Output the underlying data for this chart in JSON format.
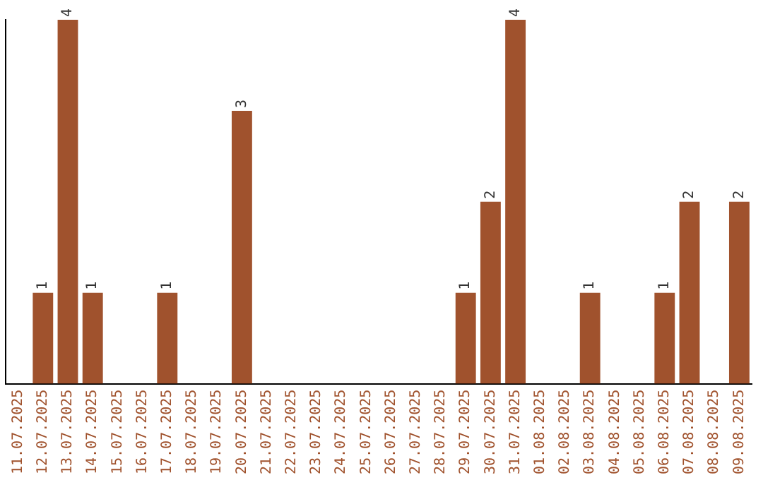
{
  "chart_data": {
    "type": "bar",
    "categories": [
      "11.07.2025",
      "12.07.2025",
      "13.07.2025",
      "14.07.2025",
      "15.07.2025",
      "16.07.2025",
      "17.07.2025",
      "18.07.2025",
      "19.07.2025",
      "20.07.2025",
      "21.07.2025",
      "22.07.2025",
      "23.07.2025",
      "24.07.2025",
      "25.07.2025",
      "26.07.2025",
      "27.07.2025",
      "28.07.2025",
      "29.07.2025",
      "30.07.2025",
      "31.07.2025",
      "01.08.2025",
      "02.08.2025",
      "03.08.2025",
      "04.08.2025",
      "05.08.2025",
      "06.08.2025",
      "07.08.2025",
      "08.08.2025",
      "09.08.2025"
    ],
    "values": [
      0,
      1,
      4,
      1,
      0,
      0,
      1,
      0,
      0,
      3,
      0,
      0,
      0,
      0,
      0,
      0,
      0,
      0,
      1,
      2,
      4,
      0,
      0,
      1,
      0,
      0,
      1,
      2,
      0,
      2
    ],
    "value_labels": [
      null,
      "1",
      "4",
      "1",
      null,
      null,
      "1",
      null,
      null,
      "3",
      null,
      null,
      null,
      null,
      null,
      null,
      null,
      null,
      "1",
      "2",
      "4",
      null,
      null,
      "1",
      null,
      null,
      "1",
      "2",
      null,
      "2"
    ],
    "color": "#a0522d",
    "ylim": [
      0,
      4
    ],
    "tick_labels": "x",
    "grid": false,
    "legend": false
  }
}
